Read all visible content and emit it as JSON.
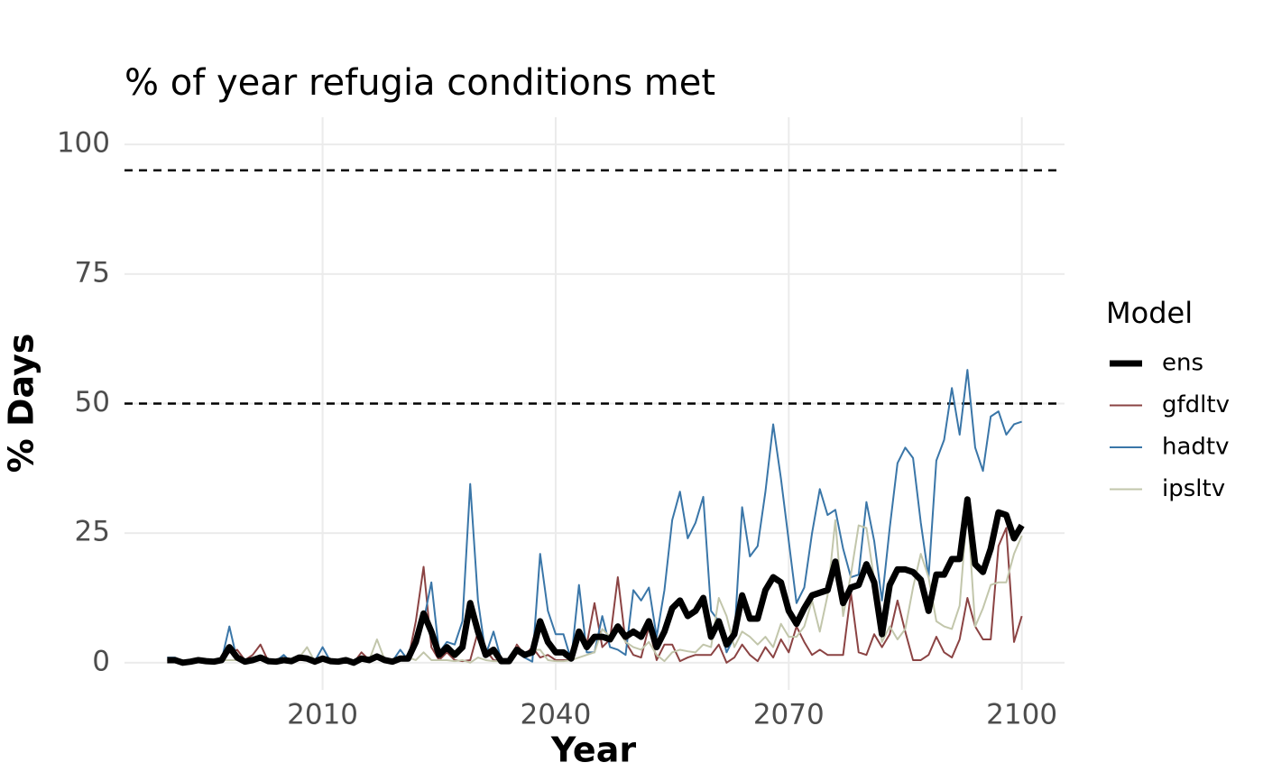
{
  "chart_data": {
    "type": "line",
    "title": "% of year refugia conditions met",
    "x_label": "Year",
    "y_label": "% Days",
    "legend_title": "Model",
    "x": [
      1990,
      1991,
      1992,
      1993,
      1994,
      1995,
      1996,
      1997,
      1998,
      1999,
      2000,
      2001,
      2002,
      2003,
      2004,
      2005,
      2006,
      2007,
      2008,
      2009,
      2010,
      2011,
      2012,
      2013,
      2014,
      2015,
      2016,
      2017,
      2018,
      2019,
      2020,
      2021,
      2022,
      2023,
      2024,
      2025,
      2026,
      2027,
      2028,
      2029,
      2030,
      2031,
      2032,
      2033,
      2034,
      2035,
      2036,
      2037,
      2038,
      2039,
      2040,
      2041,
      2042,
      2043,
      2044,
      2045,
      2046,
      2047,
      2048,
      2049,
      2050,
      2051,
      2052,
      2053,
      2054,
      2055,
      2056,
      2057,
      2058,
      2059,
      2060,
      2061,
      2062,
      2063,
      2064,
      2065,
      2066,
      2067,
      2068,
      2069,
      2070,
      2071,
      2072,
      2073,
      2074,
      2075,
      2076,
      2077,
      2078,
      2079,
      2080,
      2081,
      2082,
      2083,
      2084,
      2085,
      2086,
      2087,
      2088,
      2089,
      2090,
      2091,
      2092,
      2093,
      2094,
      2095,
      2096,
      2097,
      2098,
      2099,
      2100
    ],
    "series": [
      {
        "name": "gfdltv",
        "color": "#8b4343",
        "linewidth": 2,
        "values": [
          0.5,
          0.5,
          0,
          0.2,
          0.5,
          0.3,
          0.2,
          0.5,
          2,
          2.5,
          0.5,
          1.5,
          3.5,
          0.3,
          0.2,
          0.3,
          0.2,
          0.5,
          0.5,
          0.2,
          0.5,
          0.3,
          0.2,
          0.5,
          0,
          2,
          0.5,
          1,
          0.5,
          0.2,
          0.5,
          0.5,
          8,
          18.5,
          3,
          0.5,
          2,
          0.5,
          0.3,
          0.5,
          6,
          2.5,
          0.5,
          0.3,
          0,
          3.5,
          1.5,
          3,
          1,
          1.5,
          0.5,
          0.5,
          0.5,
          5,
          3.5,
          11.5,
          3,
          4.5,
          16.5,
          4,
          1.5,
          1,
          7,
          0.5,
          3.5,
          3.5,
          0.3,
          1,
          1.5,
          1.5,
          1.5,
          3.5,
          0,
          1,
          3.5,
          1.5,
          0.3,
          3,
          1,
          4.5,
          2,
          7,
          4,
          1.5,
          2.5,
          1.5,
          1.5,
          1.5,
          13.5,
          2,
          1.5,
          5.5,
          3,
          5.5,
          12,
          6,
          0.5,
          0.5,
          1.5,
          5,
          2,
          1,
          4.5,
          12.5,
          7,
          4.5,
          4.5,
          22.5,
          26,
          4,
          9
        ]
      },
      {
        "name": "hadtv",
        "color": "#3a76a8",
        "linewidth": 2,
        "values": [
          1,
          1,
          0,
          0.5,
          0.3,
          0.2,
          0.2,
          0.5,
          7,
          0.5,
          0.2,
          0.5,
          1,
          0.2,
          0.3,
          1.5,
          0,
          1,
          0.5,
          0.3,
          3,
          0.3,
          0.2,
          0.5,
          0,
          0.8,
          0.5,
          1.5,
          0.5,
          0.3,
          2.5,
          0.5,
          3,
          8,
          15.5,
          2,
          4,
          3.5,
          8,
          34.5,
          12,
          1.5,
          6,
          0.5,
          0.3,
          2,
          1,
          0.2,
          21,
          10,
          5.5,
          5.5,
          0.5,
          15,
          2,
          2,
          9,
          3,
          2.5,
          1.5,
          14,
          12,
          14.5,
          5,
          14,
          27.5,
          33,
          24,
          27,
          32,
          10,
          8,
          2,
          5,
          30,
          20.5,
          22.5,
          33,
          46,
          35.5,
          23.5,
          11.5,
          14.5,
          25,
          33.5,
          28.5,
          29.5,
          22,
          16.5,
          17,
          31,
          23.5,
          12,
          26,
          38.5,
          41.5,
          39.5,
          27,
          16.5,
          39,
          43,
          53,
          44,
          56.5,
          41.5,
          37,
          47.5,
          48.5,
          44,
          46,
          46.5
        ]
      },
      {
        "name": "ipsltv",
        "color": "#c2c6ab",
        "linewidth": 2,
        "values": [
          0.5,
          0.5,
          0,
          0.2,
          0.5,
          0.3,
          0.2,
          0.5,
          0.5,
          0.5,
          0.2,
          0.5,
          0.5,
          0.3,
          0.2,
          0.5,
          0.2,
          1,
          3,
          0.2,
          0.5,
          0.3,
          0.2,
          0.5,
          0,
          0.5,
          0.5,
          4.5,
          0.5,
          0.2,
          0.5,
          1,
          0.5,
          2,
          0.5,
          0.5,
          0.5,
          0.3,
          0.5,
          0,
          1,
          0.5,
          0.3,
          0.3,
          0.5,
          3,
          1.5,
          2.5,
          2.5,
          0.5,
          0.3,
          0.3,
          0.5,
          1,
          1.5,
          2,
          6.5,
          5,
          6.5,
          4,
          3,
          2.5,
          4,
          1.5,
          0.3,
          2,
          2.5,
          2.2,
          2,
          3.5,
          3,
          12.5,
          9,
          3,
          6,
          5,
          3.5,
          5,
          3,
          7.5,
          5,
          5,
          7,
          12,
          6,
          13,
          27.5,
          9,
          17,
          26.5,
          26,
          16,
          4,
          7,
          4.5,
          6.5,
          14.5,
          21,
          16.5,
          8,
          7,
          6.5,
          11,
          30,
          7,
          10.5,
          15,
          15.5,
          15.5,
          21,
          24.5
        ]
      },
      {
        "name": "ens",
        "color": "#000000",
        "linewidth": 7,
        "values": [
          0.5,
          0.5,
          0,
          0.2,
          0.5,
          0.3,
          0.2,
          0.5,
          3,
          1,
          0.2,
          0.5,
          1,
          0.3,
          0.2,
          0.5,
          0.3,
          1,
          0.8,
          0.2,
          0.8,
          0.3,
          0.2,
          0.5,
          0,
          0.8,
          0.5,
          1.2,
          0.5,
          0.2,
          0.8,
          0.8,
          4,
          9.5,
          6,
          1.5,
          3,
          1.5,
          3,
          11.5,
          6,
          1.5,
          2.5,
          0.3,
          0.3,
          2.5,
          1.5,
          2,
          8,
          4,
          2,
          2,
          0.8,
          6,
          3,
          5,
          5,
          4.5,
          7,
          5,
          6,
          5,
          8,
          3,
          6,
          10.5,
          12,
          9,
          10,
          12.5,
          5,
          8,
          3.5,
          5.5,
          13,
          8.5,
          8.5,
          14,
          16.5,
          15.5,
          10,
          7.5,
          10.5,
          13,
          13.5,
          14,
          19.5,
          11.5,
          14.5,
          15,
          19,
          15.5,
          5.5,
          15,
          18,
          18,
          17.5,
          16,
          10,
          17,
          17,
          20,
          20,
          31.5,
          19,
          17.5,
          22,
          29,
          28.5,
          24,
          26.5
        ]
      }
    ],
    "legend_order": [
      3,
      0,
      1,
      2
    ],
    "hlines": [
      50,
      95
    ],
    "xlim": [
      1984.5,
      2105.5
    ],
    "xticks": [
      2010,
      2040,
      2070,
      2100
    ],
    "ylim": [
      -5.25,
      105.25
    ],
    "yticks": [
      0,
      25,
      50,
      75,
      100
    ],
    "grid": true
  }
}
